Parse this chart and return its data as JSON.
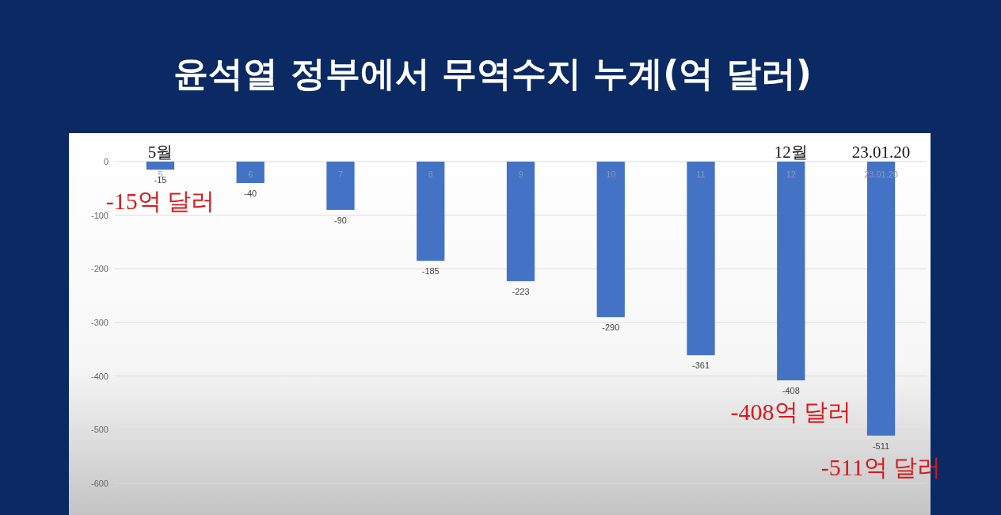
{
  "chart_data": {
    "type": "bar",
    "title": "윤석열 정부에서 무역수지 누계(억 달러)",
    "categories": [
      "5",
      "6",
      "7",
      "8",
      "9",
      "10",
      "11",
      "12",
      "23.01.20"
    ],
    "values": [
      -15,
      -40,
      -90,
      -185,
      -223,
      -290,
      -361,
      -408,
      -511
    ],
    "color": "#4472c4",
    "ylim": [
      -600,
      0
    ],
    "yticks": [
      -600,
      -500,
      -400,
      -300,
      -200,
      -100,
      0
    ],
    "grid": "y",
    "data_labels": true,
    "annotations": [
      {
        "text": "5월",
        "x": "5",
        "y": 0
      },
      {
        "text": "12월",
        "x": "12",
        "y": 0
      },
      {
        "text": "23.01.20",
        "x": "23.01.20",
        "y": 0
      },
      {
        "text": "-15억 달러",
        "x": "5",
        "y": -15
      },
      {
        "text": "-408억 달러",
        "x": "12",
        "y": -408
      },
      {
        "text": "-511억 달러",
        "x": "23.01.20",
        "y": -511
      }
    ]
  }
}
